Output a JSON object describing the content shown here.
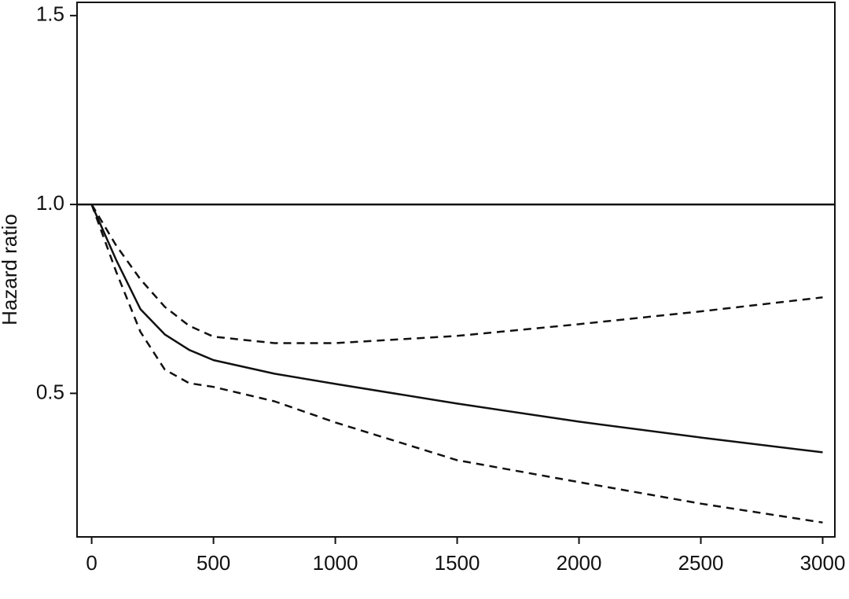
{
  "chart_data": {
    "type": "line",
    "y_label": "Hazard ratio",
    "x": [
      0,
      100,
      200,
      300,
      400,
      500,
      750,
      1000,
      1500,
      2000,
      2500,
      3000
    ],
    "series": [
      {
        "color": "#111111",
        "dash": false,
        "values": [
          1.0,
          0.854,
          0.723,
          0.656,
          0.615,
          0.588,
          0.552,
          0.525,
          0.473,
          0.425,
          0.383,
          0.344
        ]
      },
      {
        "color": "#111111",
        "dash": true,
        "values": [
          1.0,
          0.892,
          0.802,
          0.729,
          0.679,
          0.65,
          0.633,
          0.633,
          0.652,
          0.683,
          0.717,
          0.754
        ]
      },
      {
        "color": "#111111",
        "dash": true,
        "values": [
          1.0,
          0.823,
          0.663,
          0.563,
          0.527,
          0.517,
          0.479,
          0.423,
          0.323,
          0.265,
          0.208,
          0.158
        ]
      }
    ],
    "hline": 1,
    "xlim": [
      -60,
      3050
    ],
    "ylim": [
      0.12,
      1.535
    ],
    "xticks": [
      0,
      500,
      1000,
      1500,
      2000,
      2500,
      3000
    ],
    "yticks": [
      0.5,
      {
        "value": 1,
        "label": "1.0"
      },
      1.5
    ]
  }
}
